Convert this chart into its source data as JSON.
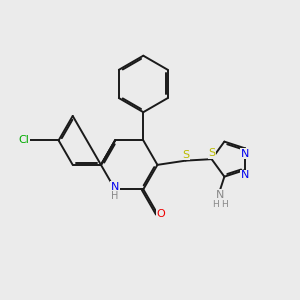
{
  "bg_color": "#ebebeb",
  "bond_color": "#1a1a1a",
  "bond_lw": 1.4,
  "dbo": 0.055,
  "atom_colors": {
    "N": "#0000ee",
    "O": "#ee0000",
    "S": "#bbbb00",
    "Cl": "#00aa00",
    "H": "#888888"
  },
  "font_size": 8.0,
  "fig_w": 3.0,
  "fig_h": 3.0,
  "dpi": 100
}
